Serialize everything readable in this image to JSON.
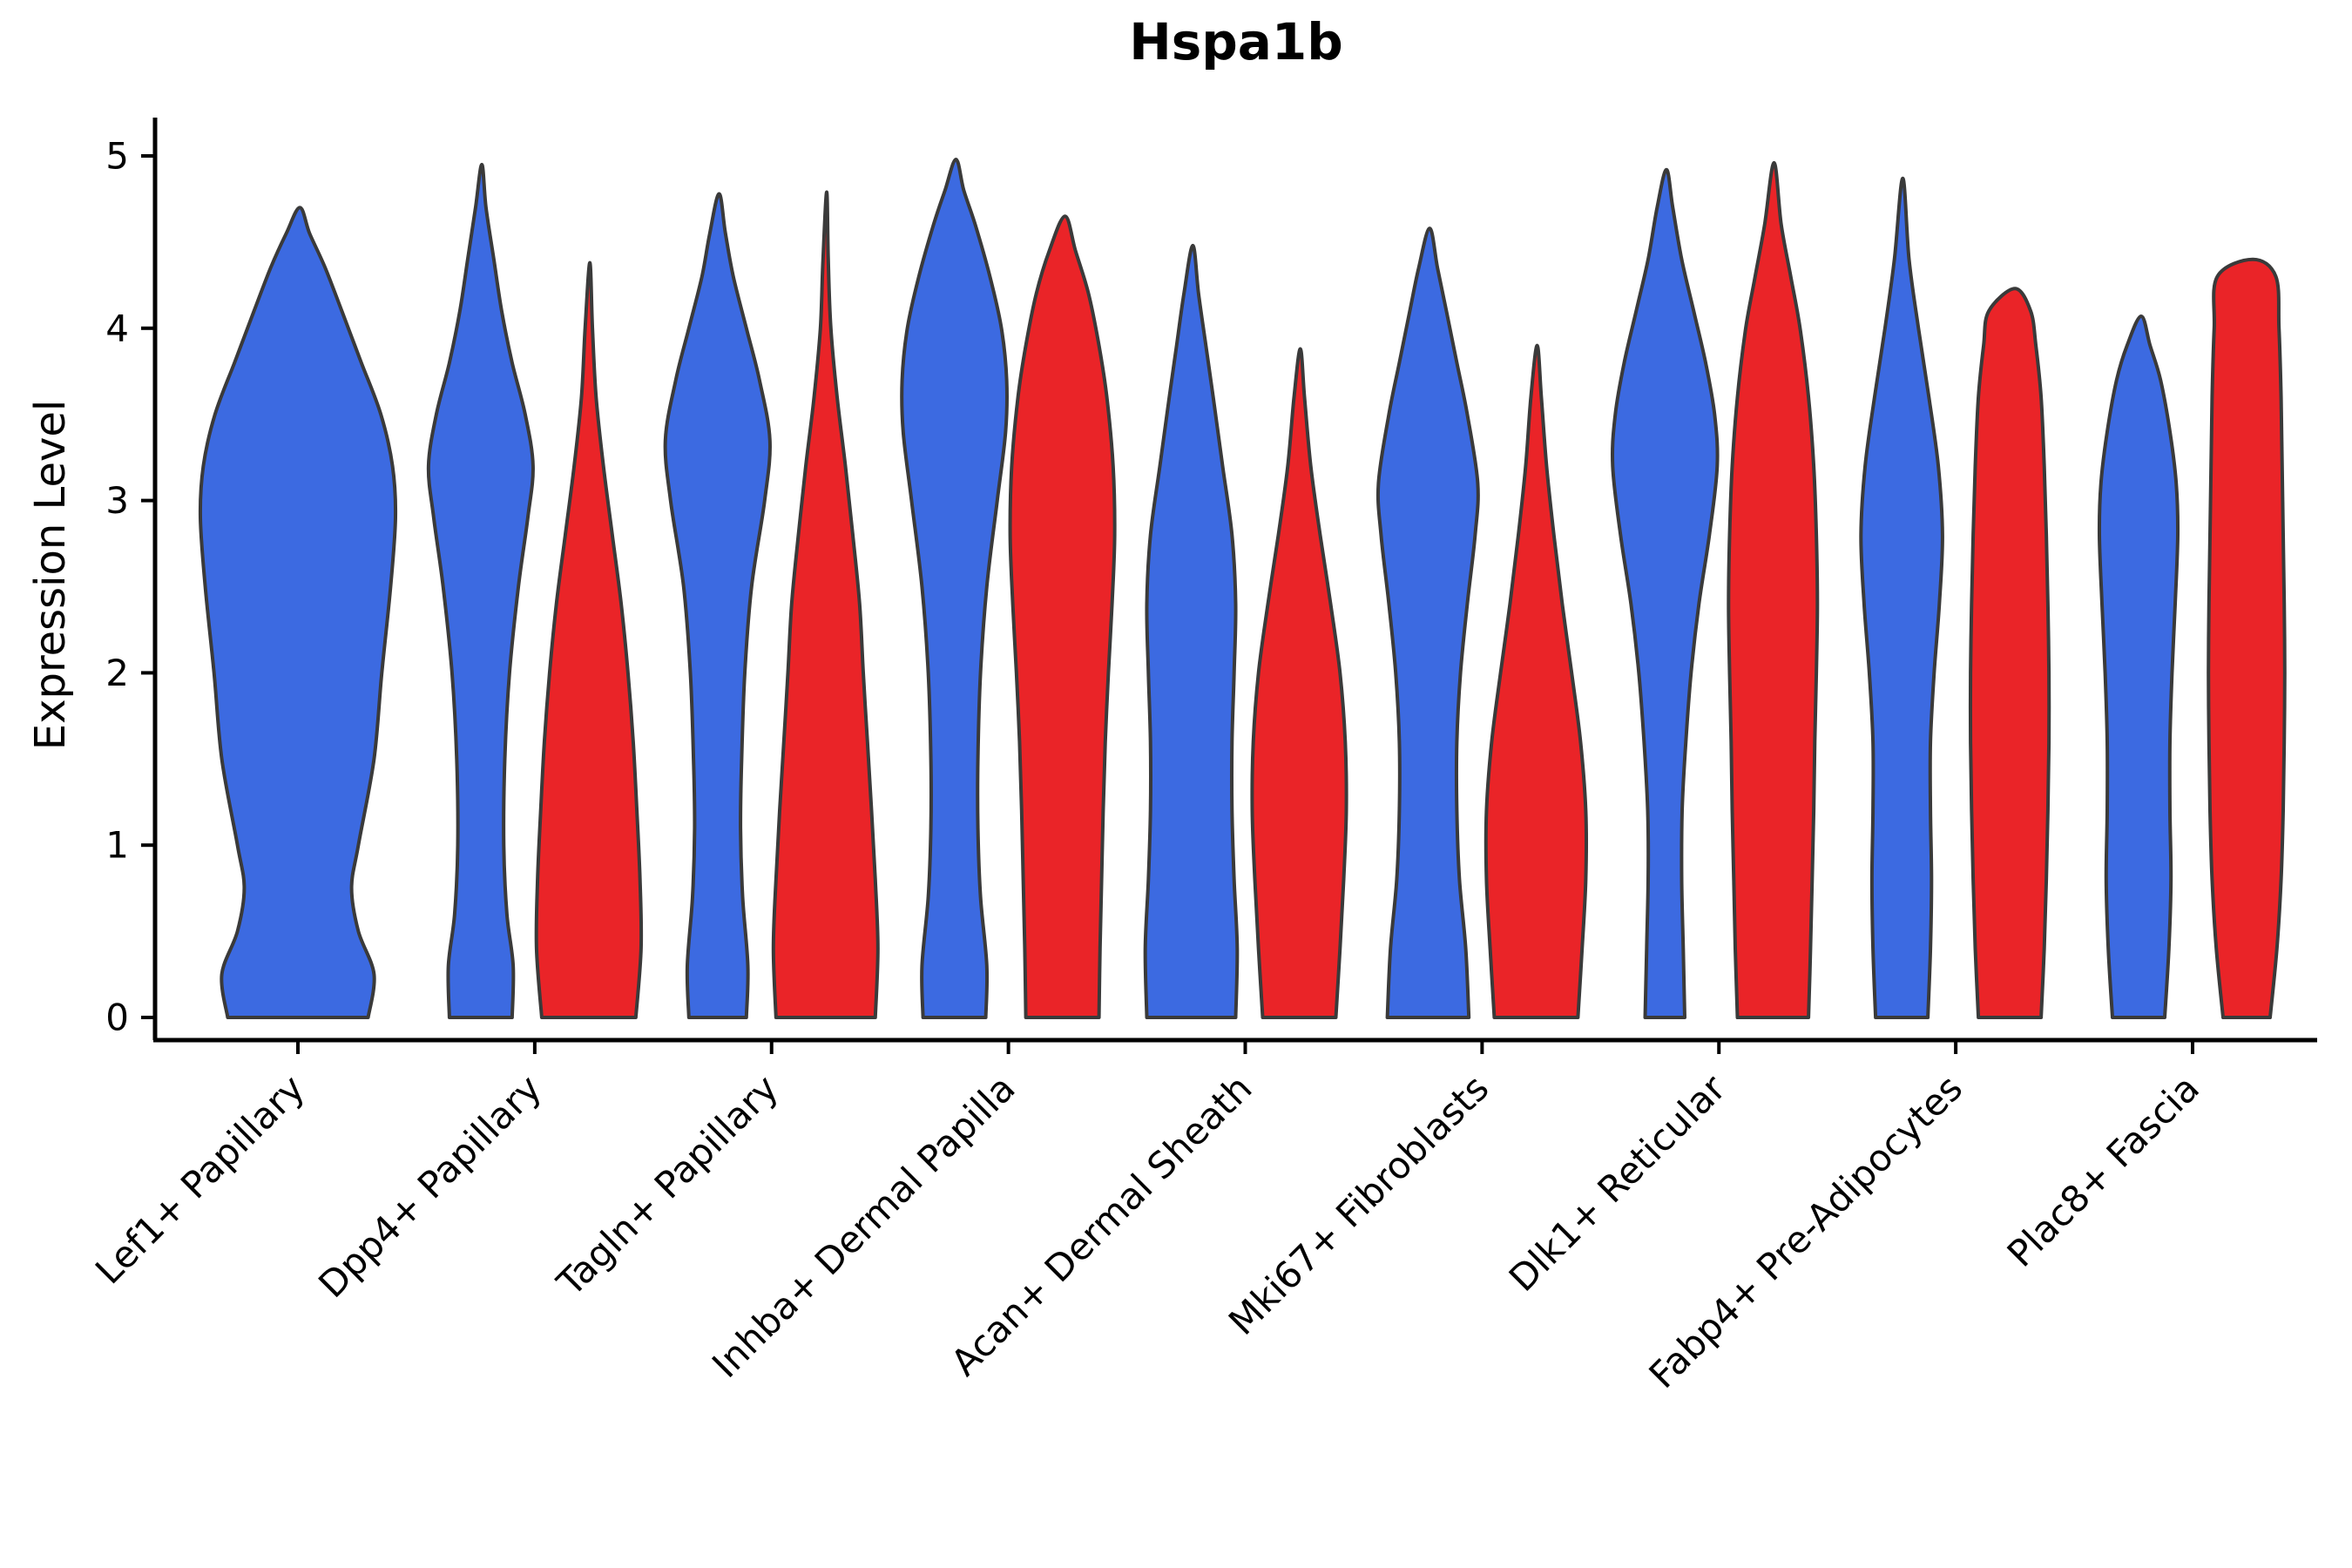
{
  "chart_data": {
    "type": "violin",
    "title": "Hspa1b",
    "ylabel": "Expression Level",
    "xlabel": "",
    "ylim": [
      0,
      5
    ],
    "yticks": [
      0,
      1,
      2,
      3,
      4,
      5
    ],
    "grid": false,
    "legend": "none",
    "xtick_rotation": 45,
    "outline": "#3a3a3a",
    "colors": {
      "blue": "#3C6AE1",
      "red": "#EA2428"
    },
    "categories": [
      "Lef1+ Papillary",
      "Dpp4+ Papillary",
      "Tagln+ Papillary",
      "Inhba+ Dermal Papilla",
      "Acan+ Dermal Sheath",
      "Mki67+ Fibroblasts",
      "Dlk1+ Reticular",
      "Fabp4+ Pre-Adipocytes",
      "Plac8+ Fascia"
    ],
    "violins": [
      {
        "category": "Lef1+ Papillary",
        "group": "blue",
        "peak": 4.7,
        "profile": [
          [
            0,
            0.72
          ],
          [
            0.25,
            0.78
          ],
          [
            0.5,
            0.62
          ],
          [
            0.75,
            0.55
          ],
          [
            1.0,
            0.62
          ],
          [
            1.5,
            0.78
          ],
          [
            2.0,
            0.86
          ],
          [
            2.5,
            0.95
          ],
          [
            2.9,
            1.0
          ],
          [
            3.2,
            0.97
          ],
          [
            3.5,
            0.85
          ],
          [
            3.8,
            0.65
          ],
          [
            4.1,
            0.45
          ],
          [
            4.35,
            0.28
          ],
          [
            4.55,
            0.12
          ],
          [
            4.7,
            0.02
          ]
        ]
      },
      {
        "category": "Dpp4+ Papillary",
        "group": "blue",
        "peak": 4.95,
        "profile": [
          [
            0,
            0.6
          ],
          [
            0.3,
            0.62
          ],
          [
            0.6,
            0.5
          ],
          [
            1.0,
            0.44
          ],
          [
            1.5,
            0.46
          ],
          [
            2.0,
            0.55
          ],
          [
            2.5,
            0.72
          ],
          [
            2.9,
            0.9
          ],
          [
            3.2,
            1.0
          ],
          [
            3.5,
            0.85
          ],
          [
            3.8,
            0.6
          ],
          [
            4.1,
            0.4
          ],
          [
            4.4,
            0.25
          ],
          [
            4.7,
            0.1
          ],
          [
            4.95,
            0.02
          ]
        ]
      },
      {
        "category": "Dpp4+ Papillary",
        "group": "red",
        "peak": 4.38,
        "profile": [
          [
            0,
            0.9
          ],
          [
            0.4,
            1.0
          ],
          [
            0.8,
            0.98
          ],
          [
            1.2,
            0.92
          ],
          [
            1.6,
            0.85
          ],
          [
            2.0,
            0.75
          ],
          [
            2.4,
            0.62
          ],
          [
            2.8,
            0.45
          ],
          [
            3.2,
            0.28
          ],
          [
            3.6,
            0.14
          ],
          [
            4.0,
            0.07
          ],
          [
            4.38,
            0.02
          ]
        ]
      },
      {
        "category": "Tagln+ Papillary",
        "group": "blue",
        "peak": 4.78,
        "profile": [
          [
            0,
            0.55
          ],
          [
            0.3,
            0.58
          ],
          [
            0.7,
            0.48
          ],
          [
            1.1,
            0.44
          ],
          [
            1.5,
            0.46
          ],
          [
            2.0,
            0.52
          ],
          [
            2.5,
            0.65
          ],
          [
            3.0,
            0.9
          ],
          [
            3.35,
            1.0
          ],
          [
            3.7,
            0.8
          ],
          [
            4.0,
            0.55
          ],
          [
            4.3,
            0.3
          ],
          [
            4.55,
            0.15
          ],
          [
            4.78,
            0.03
          ]
        ]
      },
      {
        "category": "Tagln+ Papillary",
        "group": "red",
        "peak": 4.79,
        "profile": [
          [
            0,
            0.95
          ],
          [
            0.4,
            1.0
          ],
          [
            0.8,
            0.95
          ],
          [
            1.2,
            0.88
          ],
          [
            1.6,
            0.8
          ],
          [
            2.0,
            0.72
          ],
          [
            2.4,
            0.65
          ],
          [
            2.8,
            0.52
          ],
          [
            3.2,
            0.38
          ],
          [
            3.6,
            0.22
          ],
          [
            4.0,
            0.1
          ],
          [
            4.4,
            0.05
          ],
          [
            4.79,
            0.02
          ]
        ]
      },
      {
        "category": "Inhba+ Dermal Papilla",
        "group": "blue",
        "peak": 4.98,
        "profile": [
          [
            0,
            0.6
          ],
          [
            0.3,
            0.62
          ],
          [
            0.7,
            0.5
          ],
          [
            1.1,
            0.45
          ],
          [
            1.5,
            0.45
          ],
          [
            2.0,
            0.5
          ],
          [
            2.5,
            0.62
          ],
          [
            3.0,
            0.82
          ],
          [
            3.4,
            0.98
          ],
          [
            3.7,
            1.0
          ],
          [
            4.0,
            0.9
          ],
          [
            4.3,
            0.68
          ],
          [
            4.6,
            0.4
          ],
          [
            4.8,
            0.18
          ],
          [
            4.98,
            0.03
          ]
        ]
      },
      {
        "category": "Inhba+ Dermal Papilla",
        "group": "red",
        "peak": 4.65,
        "profile": [
          [
            0,
            0.7
          ],
          [
            0.4,
            0.72
          ],
          [
            0.8,
            0.75
          ],
          [
            1.2,
            0.78
          ],
          [
            1.6,
            0.82
          ],
          [
            2.0,
            0.88
          ],
          [
            2.4,
            0.95
          ],
          [
            2.8,
            1.0
          ],
          [
            3.2,
            0.97
          ],
          [
            3.6,
            0.85
          ],
          [
            3.9,
            0.7
          ],
          [
            4.2,
            0.5
          ],
          [
            4.45,
            0.25
          ],
          [
            4.65,
            0.05
          ]
        ]
      },
      {
        "category": "Acan+ Dermal Sheath",
        "group": "blue",
        "peak": 4.48,
        "profile": [
          [
            0,
            0.85
          ],
          [
            0.4,
            0.88
          ],
          [
            0.8,
            0.82
          ],
          [
            1.2,
            0.78
          ],
          [
            1.6,
            0.78
          ],
          [
            2.0,
            0.82
          ],
          [
            2.4,
            0.85
          ],
          [
            2.8,
            0.78
          ],
          [
            3.2,
            0.6
          ],
          [
            3.6,
            0.42
          ],
          [
            3.9,
            0.28
          ],
          [
            4.2,
            0.14
          ],
          [
            4.48,
            0.03
          ]
        ]
      },
      {
        "category": "Acan+ Dermal Sheath",
        "group": "red",
        "peak": 3.88,
        "profile": [
          [
            0,
            0.7
          ],
          [
            0.4,
            0.78
          ],
          [
            0.8,
            0.85
          ],
          [
            1.2,
            0.9
          ],
          [
            1.6,
            0.88
          ],
          [
            2.0,
            0.78
          ],
          [
            2.4,
            0.6
          ],
          [
            2.8,
            0.4
          ],
          [
            3.2,
            0.22
          ],
          [
            3.6,
            0.1
          ],
          [
            3.88,
            0.02
          ]
        ]
      },
      {
        "category": "Mki67+ Fibroblasts",
        "group": "blue",
        "peak": 4.58,
        "profile": [
          [
            0,
            0.78
          ],
          [
            0.4,
            0.72
          ],
          [
            0.8,
            0.6
          ],
          [
            1.2,
            0.55
          ],
          [
            1.6,
            0.55
          ],
          [
            2.0,
            0.62
          ],
          [
            2.4,
            0.75
          ],
          [
            2.8,
            0.9
          ],
          [
            3.1,
            0.95
          ],
          [
            3.5,
            0.75
          ],
          [
            3.8,
            0.55
          ],
          [
            4.1,
            0.35
          ],
          [
            4.35,
            0.18
          ],
          [
            4.58,
            0.03
          ]
        ]
      },
      {
        "category": "Mki67+ Fibroblasts",
        "group": "red",
        "peak": 3.9,
        "profile": [
          [
            0,
            0.8
          ],
          [
            0.4,
            0.88
          ],
          [
            0.8,
            0.95
          ],
          [
            1.2,
            0.95
          ],
          [
            1.6,
            0.85
          ],
          [
            2.0,
            0.68
          ],
          [
            2.4,
            0.5
          ],
          [
            2.8,
            0.34
          ],
          [
            3.2,
            0.2
          ],
          [
            3.6,
            0.1
          ],
          [
            3.9,
            0.02
          ]
        ]
      },
      {
        "category": "Dlk1+ Reticular",
        "group": "blue",
        "peak": 4.92,
        "profile": [
          [
            0,
            0.38
          ],
          [
            0.4,
            0.35
          ],
          [
            0.8,
            0.32
          ],
          [
            1.2,
            0.33
          ],
          [
            1.6,
            0.4
          ],
          [
            2.0,
            0.5
          ],
          [
            2.4,
            0.65
          ],
          [
            2.8,
            0.85
          ],
          [
            3.2,
            1.0
          ],
          [
            3.5,
            0.95
          ],
          [
            3.8,
            0.78
          ],
          [
            4.1,
            0.55
          ],
          [
            4.4,
            0.32
          ],
          [
            4.7,
            0.15
          ],
          [
            4.92,
            0.03
          ]
        ]
      },
      {
        "category": "Dlk1+ Reticular",
        "group": "red",
        "peak": 4.96,
        "profile": [
          [
            0,
            0.68
          ],
          [
            0.4,
            0.72
          ],
          [
            0.8,
            0.75
          ],
          [
            1.2,
            0.78
          ],
          [
            1.6,
            0.8
          ],
          [
            2.0,
            0.83
          ],
          [
            2.4,
            0.85
          ],
          [
            2.8,
            0.83
          ],
          [
            3.2,
            0.78
          ],
          [
            3.6,
            0.68
          ],
          [
            4.0,
            0.52
          ],
          [
            4.3,
            0.34
          ],
          [
            4.6,
            0.16
          ],
          [
            4.96,
            0.02
          ]
        ]
      },
      {
        "category": "Fabp4+ Pre-Adipocytes",
        "group": "blue",
        "peak": 4.87,
        "profile": [
          [
            0,
            0.5
          ],
          [
            0.4,
            0.55
          ],
          [
            0.8,
            0.57
          ],
          [
            1.2,
            0.55
          ],
          [
            1.6,
            0.55
          ],
          [
            2.0,
            0.62
          ],
          [
            2.4,
            0.72
          ],
          [
            2.8,
            0.78
          ],
          [
            3.2,
            0.7
          ],
          [
            3.6,
            0.52
          ],
          [
            4.0,
            0.32
          ],
          [
            4.4,
            0.14
          ],
          [
            4.87,
            0.02
          ]
        ]
      },
      {
        "category": "Fabp4+ Pre-Adipocytes",
        "group": "red",
        "peak": 4.23,
        "profile": [
          [
            0,
            0.6
          ],
          [
            0.4,
            0.66
          ],
          [
            0.8,
            0.7
          ],
          [
            1.2,
            0.73
          ],
          [
            1.6,
            0.75
          ],
          [
            2.0,
            0.75
          ],
          [
            2.4,
            0.73
          ],
          [
            2.8,
            0.7
          ],
          [
            3.2,
            0.66
          ],
          [
            3.6,
            0.6
          ],
          [
            3.9,
            0.5
          ],
          [
            4.1,
            0.4
          ],
          [
            4.23,
            0.1
          ]
        ]
      },
      {
        "category": "Plac8+ Fascia",
        "group": "blue",
        "peak": 4.07,
        "profile": [
          [
            0,
            0.5
          ],
          [
            0.4,
            0.58
          ],
          [
            0.8,
            0.62
          ],
          [
            1.2,
            0.6
          ],
          [
            1.6,
            0.6
          ],
          [
            2.0,
            0.64
          ],
          [
            2.4,
            0.7
          ],
          [
            2.8,
            0.75
          ],
          [
            3.1,
            0.72
          ],
          [
            3.4,
            0.6
          ],
          [
            3.7,
            0.42
          ],
          [
            3.9,
            0.22
          ],
          [
            4.07,
            0.05
          ]
        ]
      },
      {
        "category": "Plac8+ Fascia",
        "group": "red",
        "peak": 4.4,
        "profile": [
          [
            0,
            0.45
          ],
          [
            0.4,
            0.58
          ],
          [
            0.8,
            0.66
          ],
          [
            1.2,
            0.7
          ],
          [
            1.6,
            0.72
          ],
          [
            2.0,
            0.73
          ],
          [
            2.4,
            0.72
          ],
          [
            2.8,
            0.7
          ],
          [
            3.2,
            0.68
          ],
          [
            3.6,
            0.66
          ],
          [
            4.0,
            0.62
          ],
          [
            4.3,
            0.56
          ],
          [
            4.4,
            0.12
          ]
        ]
      }
    ]
  }
}
